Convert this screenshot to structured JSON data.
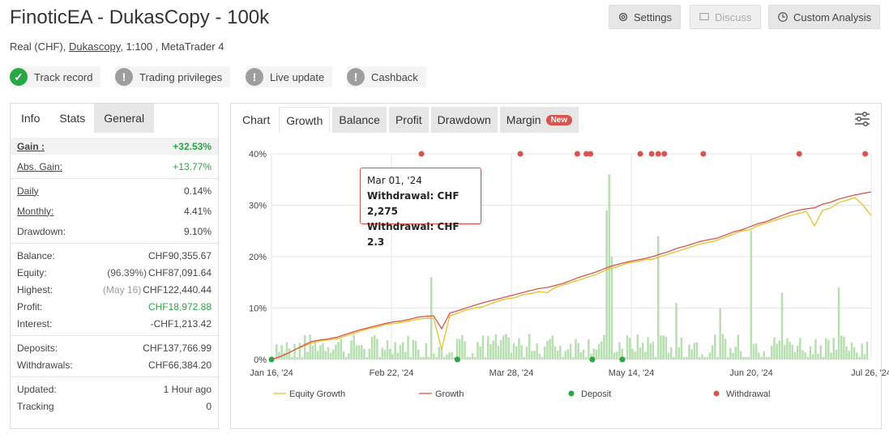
{
  "header": {
    "title": "FinoticEA - DukasCopy - 100k",
    "subtitle_prefix": "Real (CHF),",
    "subtitle_broker": "Dukascopy",
    "subtitle_suffix": ", 1:100 , MetaTrader 4"
  },
  "toolbar": {
    "settings_label": "Settings",
    "discuss_label": "Discuss",
    "custom_analysis_label": "Custom Analysis"
  },
  "badges": [
    {
      "label": "Track record",
      "status": "verified"
    },
    {
      "label": "Trading privileges",
      "status": "unverified"
    },
    {
      "label": "Live update",
      "status": "unverified"
    },
    {
      "label": "Cashback",
      "status": "unverified"
    }
  ],
  "stats_tabs": [
    "Info",
    "Stats",
    "General"
  ],
  "stats": {
    "gain_label": "Gain :",
    "gain_value": "+32.53%",
    "abs_gain_label": "Abs. Gain:",
    "abs_gain_value": "+13.77%",
    "daily_label": "Daily",
    "daily_value": "0.14%",
    "monthly_label": "Monthly:",
    "monthly_value": "4.41%",
    "drawdown_label": "Drawdown:",
    "drawdown_value": "9.10%",
    "balance_label": "Balance:",
    "balance_value": "CHF90,355.67",
    "equity_label": "Equity:",
    "equity_note": "(96.39%)",
    "equity_value": "CHF87,091.64",
    "highest_label": "Highest:",
    "highest_note": "(May 16)",
    "highest_value": "CHF122,440.44",
    "profit_label": "Profit:",
    "profit_value": "CHF18,972.88",
    "interest_label": "Interest:",
    "interest_value": "-CHF1,213.42",
    "deposits_label": "Deposits:",
    "deposits_value": "CHF137,766.99",
    "withdrawals_label": "Withdrawals:",
    "withdrawals_value": "CHF66,384.20",
    "updated_label": "Updated:",
    "updated_value": "1 Hour ago",
    "tracking_label": "Tracking",
    "tracking_value": "0"
  },
  "chart_tabs": {
    "chart": "Chart",
    "growth": "Growth",
    "balance": "Balance",
    "profit": "Profit",
    "drawdown": "Drawdown",
    "margin": "Margin",
    "new_badge": "New"
  },
  "tooltip": {
    "date": "Mar 01, '24",
    "line1": "Withdrawal: CHF 2,275",
    "line2": "Withdrawal: CHF 2.3"
  },
  "colors": {
    "growth": "#d9534f",
    "equity_growth": "#e6c229",
    "deposit": "#27a844",
    "withdrawal": "#d9534f",
    "bars": "#b7dfb0"
  },
  "chart_data": {
    "type": "line",
    "xlabels": [
      "Jan 16, '24",
      "Feb 22, '24",
      "Mar 28, '24",
      "May 14, '24",
      "Jun 20, '24",
      "Jul 26, '24"
    ],
    "yticks": [
      "0%",
      "10%",
      "20%",
      "30%",
      "40%"
    ],
    "ylim": [
      0,
      40
    ],
    "legend": [
      "Equity Growth",
      "Growth",
      "Deposit",
      "Withdrawal"
    ],
    "growth_series": [
      0,
      0.5,
      1.2,
      2.0,
      2.8,
      3.5,
      3.8,
      4.0,
      4.3,
      4.8,
      5.3,
      5.8,
      6.2,
      6.6,
      7.0,
      7.3,
      7.5,
      7.8,
      8.2,
      8.4,
      8.5,
      6.0,
      9.0,
      9.5,
      10.0,
      10.5,
      11.0,
      11.4,
      11.8,
      12.2,
      12.6,
      13.0,
      13.4,
      13.8,
      14.0,
      14.4,
      14.8,
      15.4,
      16.0,
      16.5,
      17.0,
      17.6,
      18.2,
      18.6,
      19.0,
      19.3,
      19.6,
      20.0,
      20.5,
      21.0,
      21.6,
      22.0,
      22.5,
      23.0,
      23.3,
      23.6,
      24.2,
      24.8,
      25.2,
      25.8,
      26.4,
      26.8,
      27.4,
      28.0,
      28.6,
      29.0,
      29.3,
      29.5,
      30.2,
      30.6,
      31.2,
      31.6,
      32.0,
      32.3,
      32.6
    ],
    "equity_series": [
      0,
      0.5,
      1.2,
      2.0,
      2.6,
      3.2,
      3.6,
      3.8,
      4.0,
      4.5,
      5.0,
      5.5,
      6.0,
      6.3,
      6.8,
      7.0,
      7.2,
      7.5,
      7.8,
      8.0,
      8.0,
      2.0,
      8.5,
      9.0,
      9.6,
      10.0,
      10.2,
      10.8,
      11.4,
      11.8,
      12.0,
      12.6,
      12.8,
      13.2,
      13.0,
      14.0,
      14.5,
      15.0,
      15.5,
      16.0,
      16.5,
      17.2,
      17.8,
      18.2,
      18.8,
      19.0,
      19.4,
      19.5,
      20.0,
      20.5,
      21.0,
      21.5,
      22.0,
      22.5,
      22.8,
      23.2,
      23.8,
      24.4,
      25.0,
      25.2,
      26.0,
      26.5,
      27.0,
      27.5,
      28.0,
      28.4,
      28.8,
      26.0,
      29.0,
      29.5,
      30.5,
      31.0,
      31.5,
      30.0,
      28.0
    ],
    "deposit_x": [
      0.0,
      0.31,
      0.535,
      0.585
    ],
    "withdrawal_x": [
      0.25,
      0.415,
      0.51,
      0.525,
      0.532,
      0.615,
      0.634,
      0.645,
      0.655,
      0.72,
      0.88,
      0.99
    ]
  }
}
